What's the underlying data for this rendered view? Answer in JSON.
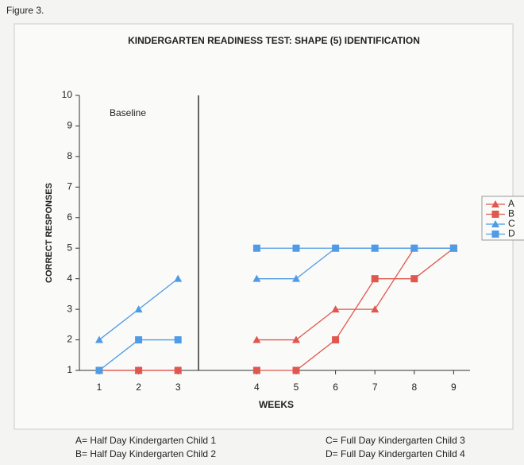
{
  "figure_label": "Figure 3.",
  "chart_data": {
    "type": "line",
    "title": "KINDERGARTEN READINESS TEST:  SHAPE (5) IDENTIFICATION",
    "x_label": "WEEKS",
    "y_label": "CORRECT RESPONSES",
    "annotation": "Baseline",
    "categories": [
      "1",
      "2",
      "3",
      null,
      "4",
      "5",
      "6",
      "7",
      "8",
      "9"
    ],
    "ylim": [
      1,
      10
    ],
    "yticks": [
      1,
      2,
      3,
      4,
      5,
      6,
      7,
      8,
      9,
      10
    ],
    "series": [
      {
        "name": "A",
        "color": "#e0574f",
        "marker": "triangle",
        "values": [
          1,
          1,
          1,
          null,
          2,
          2,
          3,
          3,
          5,
          5
        ]
      },
      {
        "name": "B",
        "color": "#e0574f",
        "marker": "square",
        "values": [
          1,
          1,
          1,
          null,
          1,
          1,
          2,
          4,
          4,
          5
        ]
      },
      {
        "name": "C",
        "color": "#4f9be6",
        "marker": "triangle",
        "values": [
          2,
          3,
          4,
          null,
          4,
          4,
          5,
          5,
          5,
          5
        ]
      },
      {
        "name": "D",
        "color": "#4f9be6",
        "marker": "square",
        "values": [
          1,
          2,
          2,
          null,
          5,
          5,
          5,
          5,
          5,
          5
        ]
      }
    ],
    "notes": [
      "A= Half Day Kindergarten Child 1",
      "B= Half Day Kindergarten Child 2",
      "C= Full Day Kindergarten Child 3",
      "D= Full Day Kindergarten Child 4"
    ]
  }
}
